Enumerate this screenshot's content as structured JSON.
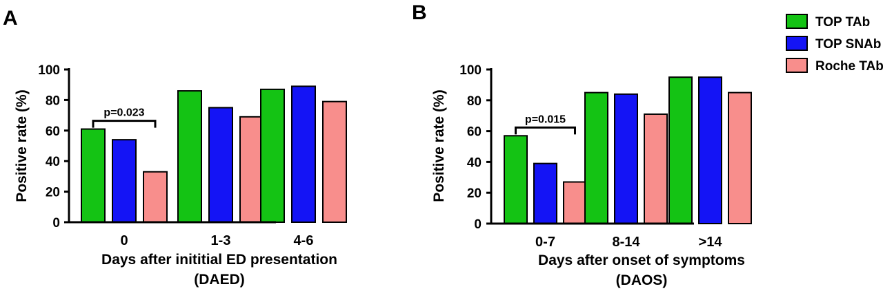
{
  "legend": {
    "placement": "top-right",
    "items": [
      {
        "name": "TOP TAb",
        "color": "#14c314"
      },
      {
        "name": "TOP SNAb",
        "color": "#1414f5"
      },
      {
        "name": "Roche TAb",
        "color": "#f88e8c"
      }
    ]
  },
  "chart_data": [
    {
      "type": "bar",
      "panel": "A",
      "categories": [
        "0",
        "1-3",
        "4-6"
      ],
      "series": [
        {
          "name": "TOP TAb",
          "values": [
            61,
            86,
            87
          ]
        },
        {
          "name": "TOP SNAb",
          "values": [
            54,
            75,
            89
          ]
        },
        {
          "name": "Roche TAb",
          "values": [
            33,
            69,
            79
          ]
        }
      ],
      "ylabel": "Positive rate (%)",
      "xlabel": "Days after inititial ED presentation",
      "xlabel_line2": "(DAED)",
      "ylim": [
        0,
        100
      ],
      "yticks": [
        "0",
        "20",
        "40",
        "60",
        "80",
        "100"
      ],
      "annotation": {
        "text": "p=0.023",
        "category": "0",
        "from_series": "TOP TAb",
        "to_series": "Roche TAb"
      },
      "grid": false
    },
    {
      "type": "bar",
      "panel": "B",
      "categories": [
        "0-7",
        "8-14",
        ">14"
      ],
      "series": [
        {
          "name": "TOP TAb",
          "values": [
            57,
            85,
            95
          ]
        },
        {
          "name": "TOP SNAb",
          "values": [
            39,
            84,
            95
          ]
        },
        {
          "name": "Roche TAb",
          "values": [
            27,
            71,
            85
          ]
        }
      ],
      "ylabel": "Positive rate (%)",
      "xlabel": "Days after onset of symptoms",
      "xlabel_line2": "(DAOS)",
      "ylim": [
        0,
        100
      ],
      "yticks": [
        "0",
        "20",
        "40",
        "60",
        "80",
        "100"
      ],
      "annotation": {
        "text": "p=0.015",
        "category": "0-7",
        "from_series": "TOP TAb",
        "to_series": "Roche TAb"
      },
      "grid": false
    }
  ]
}
